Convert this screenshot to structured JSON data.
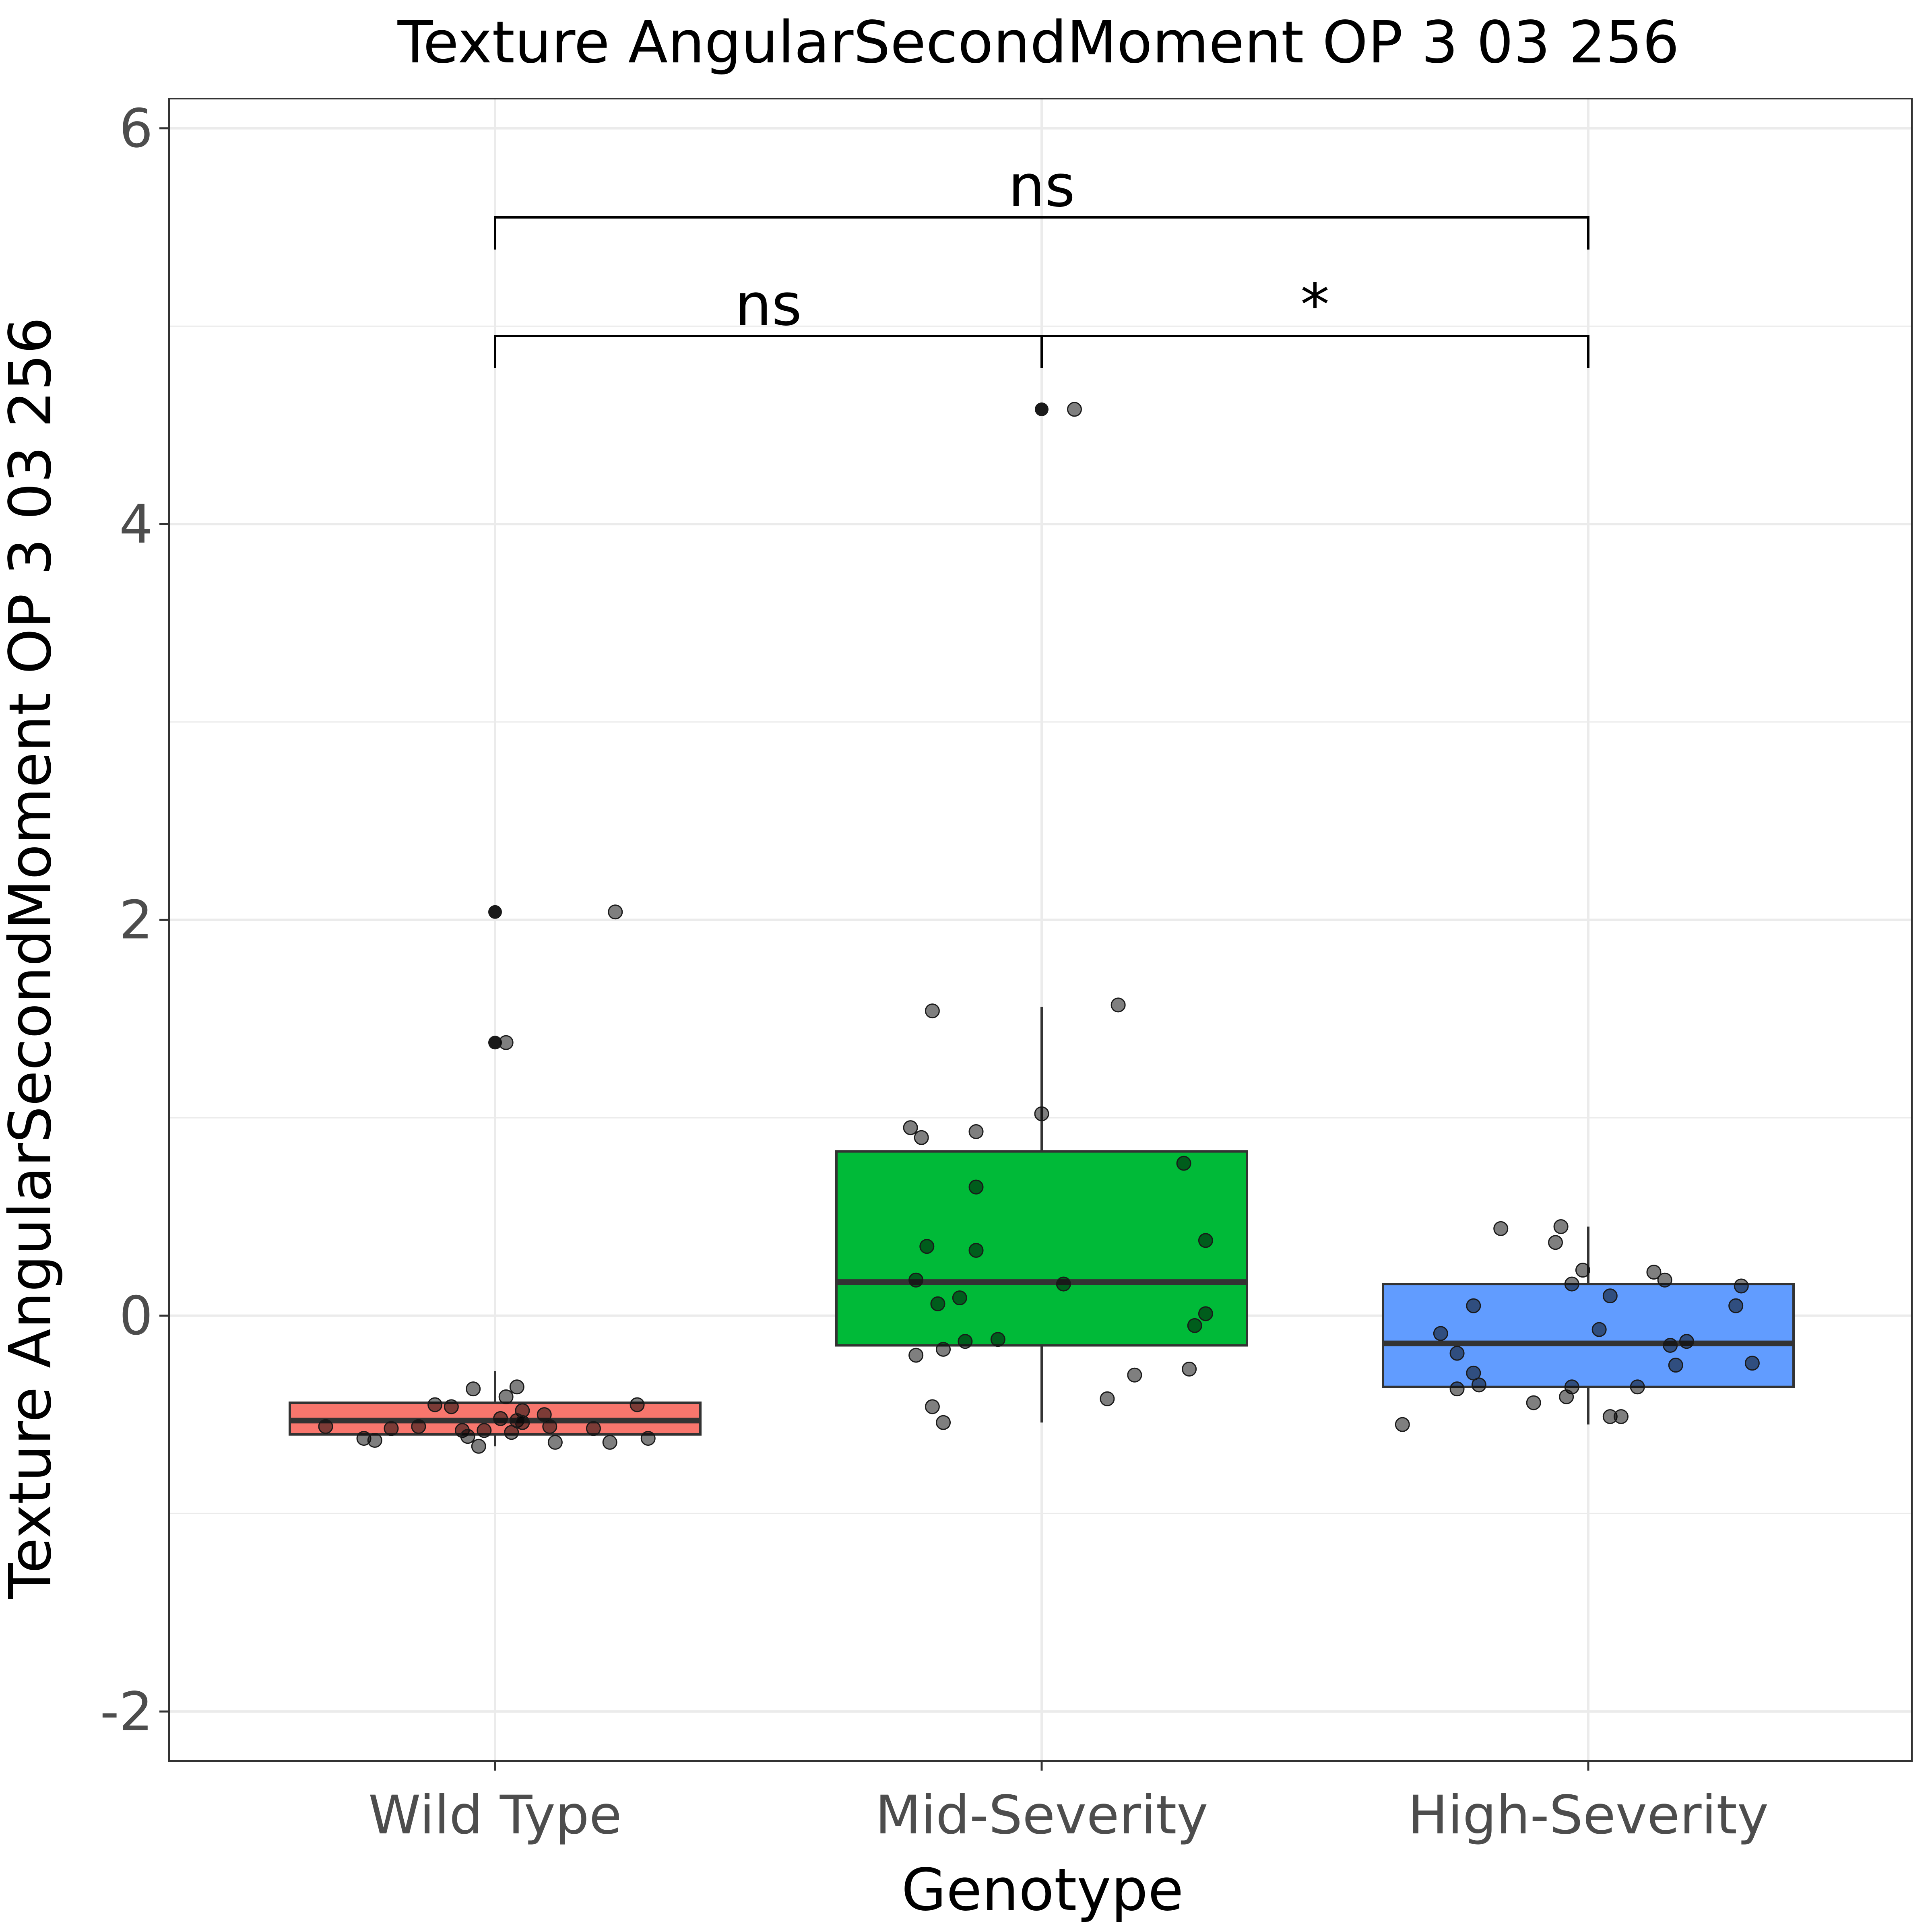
{
  "chart_data": {
    "type": "box",
    "title": "Texture AngularSecondMoment OP 3 03 256",
    "xlabel": "Genotype",
    "ylabel": "Texture AngularSecondMoment OP 3 03 256",
    "ylim": [
      -2.25,
      6.15
    ],
    "yticks": [
      -2,
      0,
      2,
      4,
      6
    ],
    "ytick_labels": [
      "-2",
      "0",
      "2",
      "4",
      "6"
    ],
    "grid": true,
    "categories": [
      "Wild Type",
      "Mid-Severity",
      "High-Severity"
    ],
    "colors": [
      "#F8766D",
      "#00BA38",
      "#619CFF"
    ],
    "boxes": [
      {
        "category": "Wild Type",
        "whisker_low": -0.66,
        "q1": -0.6,
        "median": -0.53,
        "q3": -0.44,
        "whisker_high": -0.28,
        "outliers": [
          2.04,
          1.38
        ]
      },
      {
        "category": "Mid-Severity",
        "whisker_low": -0.54,
        "q1": -0.15,
        "median": 0.17,
        "q3": 0.83,
        "whisker_high": 1.56,
        "outliers": [
          4.58
        ]
      },
      {
        "category": "High-Severity",
        "whisker_low": -0.55,
        "q1": -0.36,
        "median": -0.14,
        "q3": 0.16,
        "whisker_high": 0.45,
        "outliers": []
      }
    ],
    "points": [
      [
        [
          1.04,
          -0.36
        ],
        [
          0.96,
          -0.37
        ],
        [
          1.02,
          -0.41
        ],
        [
          0.89,
          -0.45
        ],
        [
          0.92,
          -0.46
        ],
        [
          1.05,
          -0.48
        ],
        [
          1.09,
          -0.5
        ],
        [
          1.26,
          -0.45
        ],
        [
          1.01,
          -0.52
        ],
        [
          1.04,
          -0.53
        ],
        [
          1.05,
          -0.54
        ],
        [
          0.69,
          -0.56
        ],
        [
          0.86,
          -0.56
        ],
        [
          1.1,
          -0.56
        ],
        [
          0.81,
          -0.57
        ],
        [
          1.18,
          -0.57
        ],
        [
          0.94,
          -0.58
        ],
        [
          1.03,
          -0.59
        ],
        [
          0.98,
          -0.58
        ],
        [
          0.95,
          -0.61
        ],
        [
          0.76,
          -0.62
        ],
        [
          0.78,
          -0.63
        ],
        [
          1.28,
          -0.62
        ],
        [
          1.11,
          -0.64
        ],
        [
          1.21,
          -0.64
        ],
        [
          0.97,
          -0.66
        ],
        [
          1.22,
          2.04
        ],
        [
          1.02,
          1.38
        ]
      ],
      [
        [
          2.06,
          4.58
        ],
        [
          2.14,
          1.57
        ],
        [
          1.8,
          1.54
        ],
        [
          2.0,
          1.02
        ],
        [
          1.76,
          0.95
        ],
        [
          1.78,
          0.9
        ],
        [
          1.88,
          0.93
        ],
        [
          2.26,
          0.77
        ],
        [
          1.88,
          0.65
        ],
        [
          2.3,
          0.38
        ],
        [
          1.79,
          0.35
        ],
        [
          1.88,
          0.33
        ],
        [
          1.77,
          0.18
        ],
        [
          2.04,
          0.16
        ],
        [
          1.85,
          0.09
        ],
        [
          1.81,
          0.06
        ],
        [
          2.3,
          0.01
        ],
        [
          2.28,
          -0.05
        ],
        [
          1.92,
          -0.12
        ],
        [
          1.86,
          -0.13
        ],
        [
          1.82,
          -0.17
        ],
        [
          1.77,
          -0.2
        ],
        [
          2.27,
          -0.27
        ],
        [
          2.17,
          -0.3
        ],
        [
          2.12,
          -0.42
        ],
        [
          1.8,
          -0.46
        ],
        [
          1.82,
          -0.54
        ]
      ],
      [
        [
          2.84,
          0.44
        ],
        [
          2.95,
          0.45
        ],
        [
          2.94,
          0.37
        ],
        [
          2.99,
          0.23
        ],
        [
          3.12,
          0.22
        ],
        [
          3.14,
          0.18
        ],
        [
          3.28,
          0.15
        ],
        [
          2.97,
          0.16
        ],
        [
          3.04,
          0.1
        ],
        [
          3.27,
          0.05
        ],
        [
          2.79,
          0.05
        ],
        [
          3.02,
          -0.07
        ],
        [
          2.73,
          -0.09
        ],
        [
          3.18,
          -0.13
        ],
        [
          3.15,
          -0.15
        ],
        [
          2.76,
          -0.19
        ],
        [
          3.3,
          -0.24
        ],
        [
          3.16,
          -0.25
        ],
        [
          2.79,
          -0.29
        ],
        [
          2.8,
          -0.35
        ],
        [
          2.76,
          -0.37
        ],
        [
          3.09,
          -0.36
        ],
        [
          2.97,
          -0.36
        ],
        [
          2.96,
          -0.41
        ],
        [
          2.9,
          -0.44
        ],
        [
          3.04,
          -0.51
        ],
        [
          3.06,
          -0.51
        ],
        [
          2.66,
          -0.55
        ]
      ]
    ],
    "comparisons": [
      {
        "from": "Wild Type",
        "to": "Mid-Severity",
        "label": "ns",
        "y": 4.95
      },
      {
        "from": "Mid-Severity",
        "to": "High-Severity",
        "label": "*",
        "y": 4.95
      },
      {
        "from": "Wild Type",
        "to": "High-Severity",
        "label": "ns",
        "y": 5.55
      }
    ]
  }
}
